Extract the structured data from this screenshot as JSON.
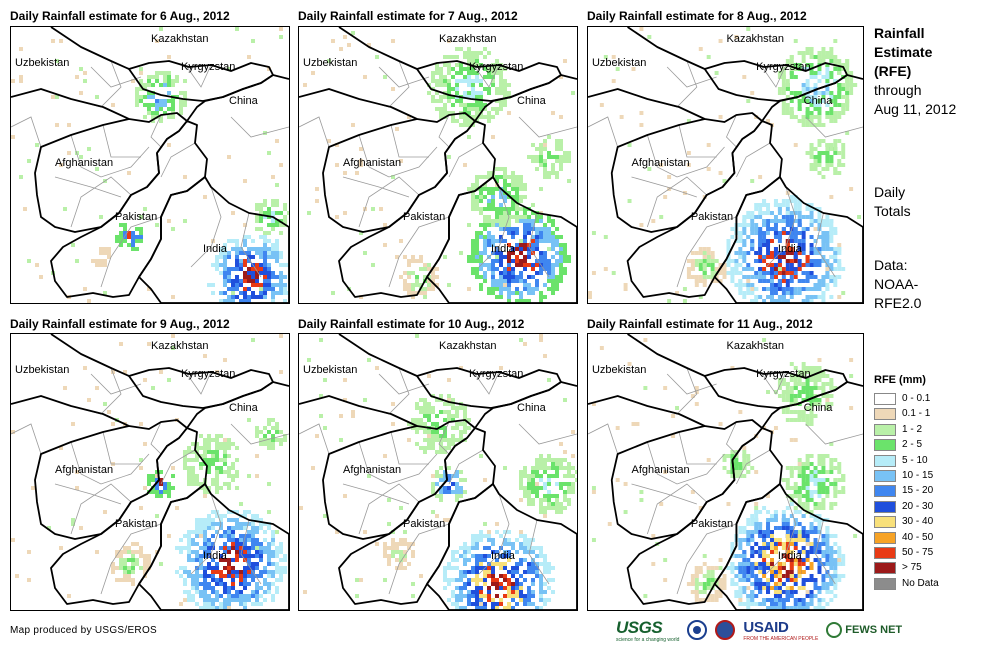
{
  "panels": [
    {
      "title": "Daily Rainfall estimate for 6 Aug., 2012"
    },
    {
      "title": "Daily Rainfall estimate for 7 Aug., 2012"
    },
    {
      "title": "Daily Rainfall estimate for 8 Aug., 2012"
    },
    {
      "title": "Daily Rainfall estimate for 9 Aug., 2012"
    },
    {
      "title": "Daily Rainfall estimate for 10 Aug., 2012"
    },
    {
      "title": "Daily Rainfall estimate for 11 Aug., 2012"
    }
  ],
  "place_labels": {
    "kazakhstan": "Kazakhstan",
    "uzbekistan": "Uzbekistan",
    "kyrgyzstan": "Kyrgyzstan",
    "china": "China",
    "afghanistan": "Afghanistan",
    "pakistan": "Pakistan",
    "india": "India"
  },
  "sidebar": {
    "title_bold_1": "Rainfall",
    "title_bold_2": "Estimate",
    "title_bold_3": "(RFE)",
    "title_line_4": "through",
    "title_line_5": "Aug 11, 2012",
    "daily_1": "Daily",
    "daily_2": "Totals",
    "data_1": "Data:",
    "data_2": "NOAA-",
    "data_3": "RFE2.0"
  },
  "legend": {
    "title": "RFE (mm)",
    "items": [
      {
        "label": "0 - 0.1",
        "color": "#ffffff"
      },
      {
        "label": "0.1 - 1",
        "color": "#eed8b8"
      },
      {
        "label": "1 - 2",
        "color": "#b9f0a8"
      },
      {
        "label": "2 - 5",
        "color": "#6be36b"
      },
      {
        "label": "5 - 10",
        "color": "#b6ecf8"
      },
      {
        "label": "10 - 15",
        "color": "#78c2f5"
      },
      {
        "label": "15 - 20",
        "color": "#3f86f0"
      },
      {
        "label": "20 - 30",
        "color": "#1f4fdc"
      },
      {
        "label": "30 - 40",
        "color": "#f8e07a"
      },
      {
        "label": "40 - 50",
        "color": "#f7a326"
      },
      {
        "label": "50 - 75",
        "color": "#e83a15"
      },
      {
        "label": "> 75",
        "color": "#9c1a1a"
      },
      {
        "label": "No Data",
        "color": "#8c8c8c"
      }
    ]
  },
  "footer": {
    "credit": "Map produced by USGS/EROS",
    "usgs": "USGS",
    "usgs_tagline": "science for a changing world",
    "usaid": "USAID",
    "usaid_tagline": "FROM THE AMERICAN PEOPLE",
    "fews": "FEWS NET"
  },
  "colors": {
    "border_country": "#000000",
    "border_province": "#9a9a9a"
  }
}
